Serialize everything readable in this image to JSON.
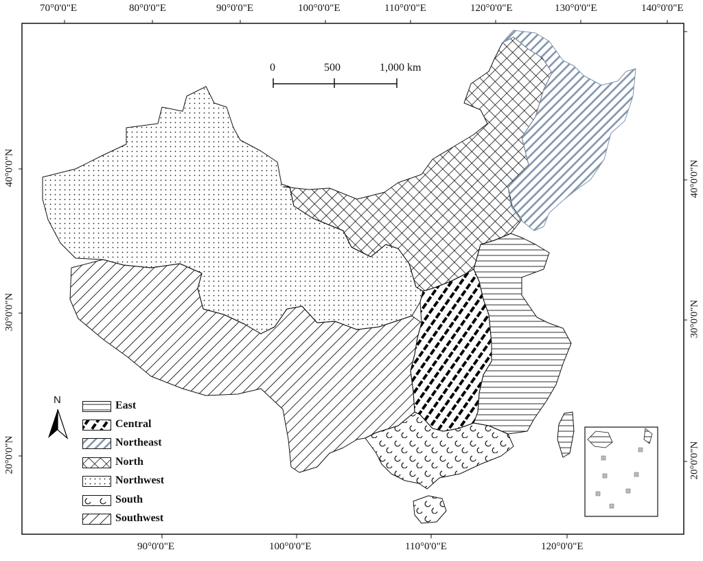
{
  "map": {
    "graticule": {
      "top_longitudes": [
        "70°0'0\"E",
        "80°0'0\"E",
        "90°0'0\"E",
        "100°0'0\"E",
        "110°0'0\"E",
        "120°0'0\"E",
        "130°0'0\"E",
        "140°0'0\"E"
      ],
      "bottom_longitudes": [
        "90°0'0\"E",
        "100°0'0\"E",
        "110°0'0\"E",
        "120°0'0\"E"
      ],
      "left_latitudes": [
        "40°0'0\"N",
        "30°0'0\"N",
        "20°0'0\"N"
      ],
      "right_latitudes": [
        "40°0'0\"N",
        "30°0'0\"N",
        "20°0'0\"N"
      ]
    },
    "scale_bar": {
      "labels": [
        "0",
        "500",
        "1,000  km"
      ]
    },
    "north_arrow": {
      "label": "N",
      "icon": "north-arrow-icon"
    },
    "legend": [
      {
        "label": "East",
        "pattern": "horizontal-lines"
      },
      {
        "label": "Central",
        "pattern": "bold-dashed-diagonal"
      },
      {
        "label": "Northeast",
        "pattern": "blue-grey-diagonal"
      },
      {
        "label": "North",
        "pattern": "crosshatch"
      },
      {
        "label": "Northwest",
        "pattern": "dots"
      },
      {
        "label": "South",
        "pattern": "circle-marks"
      },
      {
        "label": "Southwest",
        "pattern": "diagonal-lines"
      }
    ],
    "colors": {
      "ink": "#111111",
      "northeast_blue": "#7f94aa",
      "background": "#ffffff"
    }
  }
}
